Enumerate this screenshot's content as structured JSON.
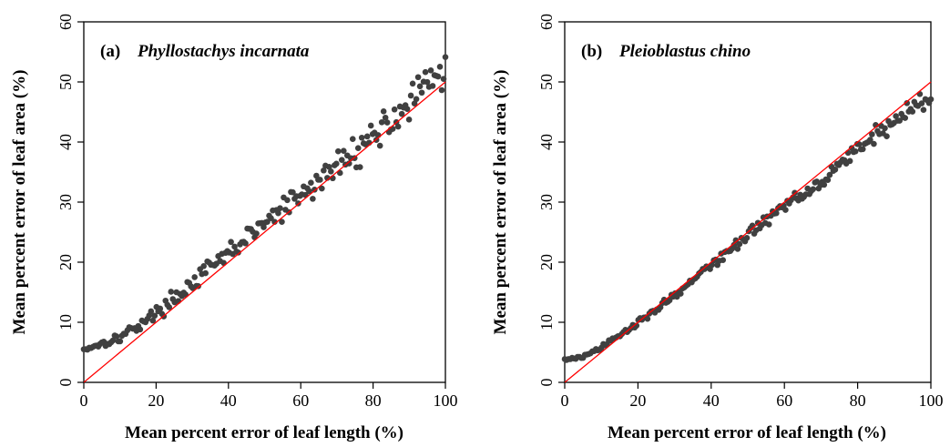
{
  "chart_data": [
    {
      "type": "scatter",
      "panel": "(a)",
      "title": "Phyllostachys incarnata",
      "xlabel": "Mean percent error of leaf length (%)",
      "ylabel": "Mean percent error of leaf area (%)",
      "xlim": [
        0,
        100
      ],
      "ylim": [
        0,
        60
      ],
      "xticks": [
        0,
        20,
        40,
        60,
        80,
        100
      ],
      "yticks": [
        0,
        10,
        20,
        30,
        40,
        50,
        60
      ],
      "xtick_labels": [
        "0",
        "20",
        "40",
        "60",
        "80",
        "100"
      ],
      "ytick_labels": [
        "0",
        "10",
        "20",
        "30",
        "40",
        "50",
        "60"
      ],
      "grid": false,
      "reference_line": {
        "x": [
          0,
          100
        ],
        "y": [
          0,
          50
        ],
        "color": "#ff0000"
      },
      "point_color": "#404040",
      "trend": {
        "x": [
          0,
          10,
          20,
          30,
          40,
          50,
          60,
          70,
          80,
          90,
          100
        ],
        "y": [
          5.5,
          7.5,
          11.5,
          16.5,
          21.5,
          26.5,
          31,
          36,
          41,
          46.5,
          52
        ]
      }
    },
    {
      "type": "scatter",
      "panel": "(b)",
      "title": "Pleioblastus chino",
      "xlabel": "Mean percent error of leaf length (%)",
      "ylabel": "Mean percent error of leaf area (%)",
      "xlim": [
        0,
        100
      ],
      "ylim": [
        0,
        60
      ],
      "xticks": [
        0,
        20,
        40,
        60,
        80,
        100
      ],
      "yticks": [
        0,
        10,
        20,
        30,
        40,
        50,
        60
      ],
      "xtick_labels": [
        "0",
        "20",
        "40",
        "60",
        "80",
        "100"
      ],
      "ytick_labels": [
        "0",
        "10",
        "20",
        "30",
        "40",
        "50",
        "60"
      ],
      "grid": false,
      "reference_line": {
        "x": [
          0,
          100
        ],
        "y": [
          0,
          50
        ],
        "color": "#ff0000"
      },
      "point_color": "#404040",
      "trend": {
        "x": [
          0,
          5,
          10,
          15,
          20,
          30,
          40,
          50,
          60,
          70,
          80,
          90,
          100
        ],
        "y": [
          3.8,
          4.2,
          5.8,
          7.8,
          10,
          14.5,
          19.5,
          24.5,
          29.5,
          33.5,
          39,
          43.5,
          47.5
        ]
      }
    }
  ]
}
